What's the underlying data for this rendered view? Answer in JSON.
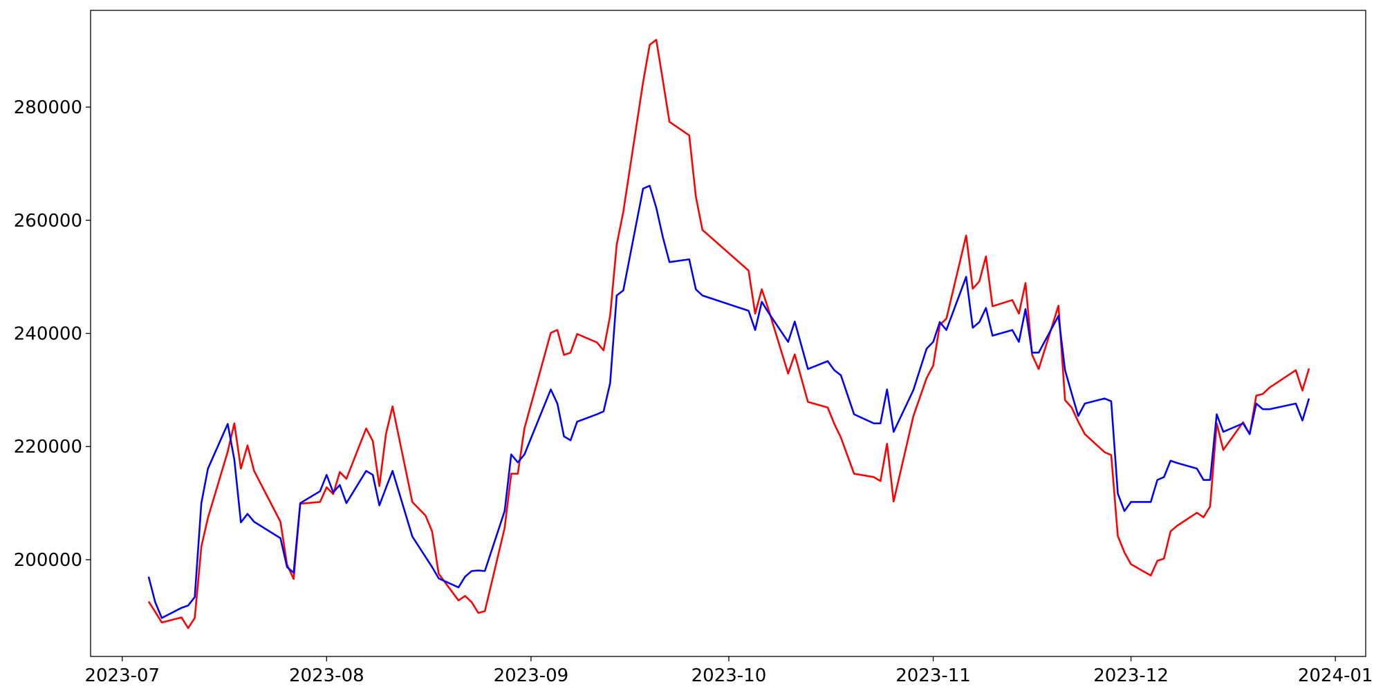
{
  "chart_data": {
    "type": "line",
    "x": [
      19543,
      19544,
      19545,
      19548,
      19549,
      19550,
      19551,
      19552,
      19555,
      19556,
      19557,
      19558,
      19559,
      19563,
      19564,
      19565,
      19566,
      19569,
      19570,
      19571,
      19572,
      19573,
      19576,
      19577,
      19578,
      19579,
      19580,
      19583,
      19585,
      19586,
      19587,
      19590,
      19591,
      19592,
      19593,
      19594,
      19597,
      19598,
      19599,
      19600,
      19604,
      19605,
      19606,
      19607,
      19608,
      19611,
      19612,
      19613,
      19614,
      19615,
      19618,
      19619,
      19620,
      19621,
      19622,
      19625,
      19626,
      19627,
      19634,
      19635,
      19636,
      19637,
      19640,
      19641,
      19643,
      19646,
      19647,
      19648,
      19650,
      19653,
      19654,
      19655,
      19656,
      19659,
      19661,
      19662,
      19663,
      19664,
      19667,
      19668,
      19669,
      19670,
      19671,
      19674,
      19675,
      19676,
      19677,
      19678,
      19681,
      19682,
      19683,
      19684,
      19685,
      19688,
      19689,
      19690,
      19691,
      19692,
      19695,
      19696,
      19697,
      19698,
      19699,
      19702,
      19703,
      19704,
      19705,
      19706,
      19709,
      19710,
      19711,
      19712,
      19713,
      19717,
      19718,
      19719
    ],
    "series": [
      {
        "color": "#ff0000",
        "values": [
          192600,
          190800,
          188900,
          189800,
          187900,
          189700,
          202300,
          207400,
          219100,
          224100,
          216100,
          220200,
          215700,
          206700,
          199100,
          196600,
          209900,
          210200,
          212800,
          211600,
          215500,
          214300,
          223200,
          221000,
          213000,
          222200,
          227100,
          210200,
          207800,
          205000,
          197500,
          192800,
          193600,
          192500,
          190600,
          190900,
          205600,
          215200,
          215200,
          223200,
          240100,
          240600,
          236200,
          236600,
          239900,
          238400,
          237000,
          243100,
          255700,
          261500,
          284400,
          291000,
          291900,
          284700,
          277400,
          275000,
          264200,
          258300,
          251100,
          243500,
          247800,
          244300,
          232900,
          236300,
          227900,
          226900,
          224000,
          221600,
          215200,
          214600,
          213900,
          220500,
          210300,
          225400,
          232100,
          234300,
          241500,
          242600,
          257300,
          247900,
          249200,
          253600,
          244800,
          245900,
          243500,
          248900,
          236200,
          233700,
          244900,
          228200,
          226900,
          224400,
          222200,
          219000,
          218500,
          204200,
          201300,
          199200,
          197200,
          199800,
          200200,
          205000,
          206000,
          208300,
          207500,
          209400,
          224100,
          219400,
          224300,
          222200,
          229000,
          229300,
          230400,
          233500,
          229900,
          233800
        ]
      },
      {
        "color": "#0000ff",
        "values": [
          197000,
          192500,
          189700,
          191500,
          191900,
          193400,
          210000,
          216100,
          224000,
          217700,
          206600,
          208100,
          206700,
          203800,
          198700,
          197700,
          210000,
          212100,
          215000,
          211900,
          213200,
          210000,
          215700,
          215000,
          209600,
          212700,
          215700,
          204100,
          200500,
          198700,
          196700,
          195100,
          197000,
          198000,
          198100,
          198000,
          208600,
          218600,
          217200,
          218600,
          230100,
          227600,
          221800,
          221100,
          224400,
          225700,
          226200,
          231200,
          246700,
          247600,
          265600,
          266100,
          262200,
          257000,
          252600,
          253100,
          247800,
          246700,
          244000,
          240600,
          245600,
          243700,
          238500,
          242100,
          233700,
          235100,
          233500,
          232600,
          225700,
          224100,
          224100,
          230100,
          222600,
          230000,
          237300,
          238500,
          242000,
          240600,
          250000,
          241000,
          242000,
          244500,
          239600,
          240600,
          238500,
          244300,
          236600,
          236600,
          243100,
          233500,
          229400,
          225400,
          227600,
          228500,
          228000,
          211700,
          208600,
          210200,
          210200,
          214100,
          214600,
          217500,
          217100,
          216100,
          214100,
          214100,
          225700,
          222600,
          224100,
          222200,
          227600,
          226600,
          226600,
          227600,
          224600,
          228500
        ]
      }
    ],
    "xlim": [
      19534.2,
      19727.6
    ],
    "xticks": [
      {
        "value": 19539,
        "label": "2023-07"
      },
      {
        "value": 19570,
        "label": "2023-08"
      },
      {
        "value": 19601,
        "label": "2023-09"
      },
      {
        "value": 19631,
        "label": "2023-10"
      },
      {
        "value": 19662,
        "label": "2023-11"
      },
      {
        "value": 19692,
        "label": "2023-12"
      },
      {
        "value": 19723,
        "label": "2024-01"
      }
    ],
    "ylim": [
      182900,
      297100
    ],
    "yticks": [
      200000,
      220000,
      240000,
      260000,
      280000
    ]
  }
}
